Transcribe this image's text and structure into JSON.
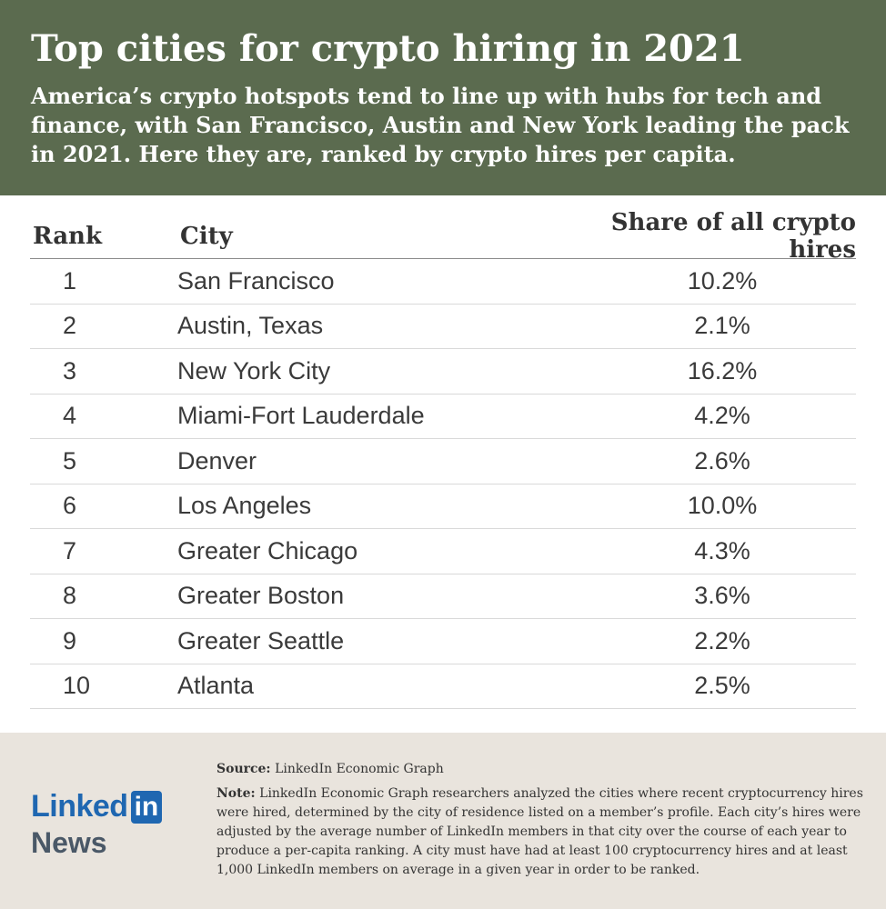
{
  "header": {
    "title": "Top cities for crypto hiring in 2021",
    "subtitle": "America’s crypto hotspots tend to line up with hubs for tech and finance, with San Francisco, Austin and New York leading the pack in 2021. Here they are, ranked by crypto hires per capita."
  },
  "colors": {
    "header_bg": "#5b6b4f",
    "footer_bg": "#e9e4dd",
    "brand_blue": "#1f67b1"
  },
  "chart_data": {
    "type": "table",
    "columns": [
      "Rank",
      "City",
      "Share of all crypto hires"
    ],
    "rows": [
      {
        "rank": "1",
        "city": "San Francisco",
        "share": "10.2%"
      },
      {
        "rank": "2",
        "city": "Austin, Texas",
        "share": "2.1%"
      },
      {
        "rank": "3",
        "city": "New York City",
        "share": "16.2%"
      },
      {
        "rank": "4",
        "city": "Miami-Fort Lauderdale",
        "share": "4.2%"
      },
      {
        "rank": "5",
        "city": "Denver",
        "share": "2.6%"
      },
      {
        "rank": "6",
        "city": "Los Angeles",
        "share": "10.0%"
      },
      {
        "rank": "7",
        "city": "Greater Chicago",
        "share": "4.3%"
      },
      {
        "rank": "8",
        "city": "Greater Boston",
        "share": "3.6%"
      },
      {
        "rank": "9",
        "city": "Greater Seattle",
        "share": "2.2%"
      },
      {
        "rank": "10",
        "city": "Atlanta",
        "share": "2.5%"
      }
    ]
  },
  "footer": {
    "logo_word": "Linked",
    "logo_box": "in",
    "logo_sub": "News",
    "source_label": "Source:",
    "source_text": "LinkedIn Economic Graph",
    "note_label": "Note:",
    "note_text": "LinkedIn Economic Graph researchers analyzed the cities where recent cryptocurrency hires were hired, determined by the city of residence listed on a member’s profile. Each city’s hires were adjusted by the average number of LinkedIn members in that city over the course of each year to produce a per-capita ranking. A city must have had at least 100 cryptocurrency hires and at least 1,000 LinkedIn members on average in a given year in order to be ranked."
  }
}
